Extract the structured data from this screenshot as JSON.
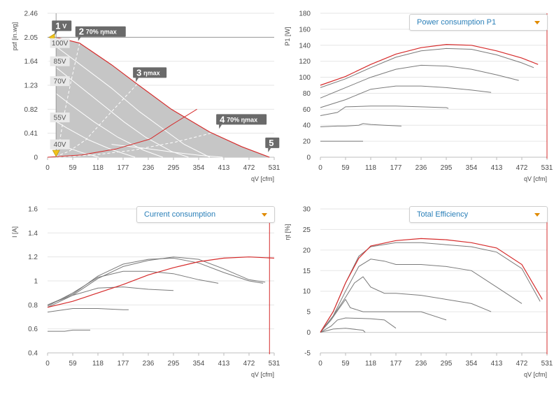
{
  "colors": {
    "accent": "#d62b2b",
    "curve": "#7a7a7a",
    "dropdown_text": "#2a7fb8",
    "caret": "#e08a00",
    "fill": "#c6c6c6"
  },
  "chart_data": [
    {
      "id": "pressure",
      "type": "line",
      "ylabel": "psf [in.wg]",
      "xlabel": "qV [cfm]",
      "x_ticks": [
        "0",
        "59",
        "118",
        "177",
        "236",
        "295",
        "354",
        "413",
        "472",
        "531"
      ],
      "y_ticks": [
        "0",
        "0.41",
        "0.82",
        "1.23",
        "1.64",
        "2.05",
        "2.46"
      ],
      "xlim": [
        0,
        531
      ],
      "ylim": [
        0,
        2.46
      ],
      "working_point": {
        "x": 20,
        "y": 2.05
      },
      "voltage_labels": [
        {
          "text": "100V",
          "x": 37,
          "y": 1.95
        },
        {
          "text": "85V",
          "x": 37,
          "y": 1.64
        },
        {
          "text": "70V",
          "x": 37,
          "y": 1.3
        },
        {
          "text": "55V",
          "x": 37,
          "y": 0.68
        },
        {
          "text": "40V",
          "x": 37,
          "y": 0.22
        }
      ],
      "markers": [
        {
          "num": "1",
          "text": "V",
          "x": 20,
          "y": 2.05
        },
        {
          "num": "2",
          "text": "70% ηmax",
          "x": 75,
          "y": 1.95
        },
        {
          "num": "3",
          "text": "ηmax",
          "x": 210,
          "y": 1.25
        },
        {
          "num": "4",
          "text": "70% ηmax",
          "x": 405,
          "y": 0.45
        },
        {
          "num": "5",
          "text": "",
          "x": 520,
          "y": 0.05
        }
      ],
      "envelope": [
        [
          20,
          2.05
        ],
        [
          75,
          1.95
        ],
        [
          150,
          1.58
        ],
        [
          210,
          1.25
        ],
        [
          290,
          0.82
        ],
        [
          380,
          0.43
        ],
        [
          455,
          0.18
        ],
        [
          520,
          0
        ]
      ],
      "max_curve": [
        [
          20,
          2.05
        ],
        [
          75,
          1.95
        ],
        [
          150,
          1.58
        ],
        [
          210,
          1.25
        ],
        [
          290,
          0.82
        ],
        [
          380,
          0.43
        ],
        [
          455,
          0.18
        ],
        [
          520,
          0
        ]
      ],
      "white_curves": [
        [
          [
            0,
            2.0
          ],
          [
            70,
            1.62
          ],
          [
            150,
            1.18
          ],
          [
            215,
            0.78
          ],
          [
            275,
            0.46
          ],
          [
            320,
            0.22
          ],
          [
            380,
            0
          ]
        ],
        [
          [
            0,
            1.65
          ],
          [
            60,
            1.3
          ],
          [
            120,
            0.95
          ],
          [
            180,
            0.6
          ],
          [
            230,
            0.34
          ],
          [
            290,
            0.1
          ],
          [
            330,
            0
          ]
        ],
        [
          [
            0,
            1.2
          ],
          [
            50,
            0.92
          ],
          [
            110,
            0.6
          ],
          [
            165,
            0.34
          ],
          [
            225,
            0.12
          ],
          [
            270,
            0
          ]
        ],
        [
          [
            0,
            0.7
          ],
          [
            45,
            0.5
          ],
          [
            95,
            0.3
          ],
          [
            150,
            0.13
          ],
          [
            205,
            0
          ]
        ],
        [
          [
            0,
            0.28
          ],
          [
            40,
            0.18
          ],
          [
            80,
            0.08
          ],
          [
            120,
            0
          ]
        ],
        [
          [
            150,
            0.22
          ],
          [
            230,
            0.15
          ],
          [
            300,
            0.08
          ],
          [
            360,
            0.03
          ],
          [
            410,
            0
          ]
        ]
      ],
      "dashed_curves": [
        [
          [
            75,
            1.95
          ],
          [
            55,
            1.3
          ],
          [
            38,
            0.7
          ],
          [
            28,
            0.25
          ],
          [
            20,
            0
          ]
        ],
        [
          [
            210,
            1.25
          ],
          [
            140,
            0.7
          ],
          [
            90,
            0.3
          ],
          [
            50,
            0.1
          ],
          [
            15,
            0
          ]
        ],
        [
          [
            405,
            0.45
          ],
          [
            300,
            0.26
          ],
          [
            200,
            0.12
          ],
          [
            110,
            0.04
          ],
          [
            20,
            0
          ]
        ]
      ],
      "system_curve": [
        [
          0,
          0
        ],
        [
          80,
          0.04
        ],
        [
          160,
          0.14
        ],
        [
          240,
          0.31
        ],
        [
          290,
          0.55
        ],
        [
          350,
          0.82
        ]
      ]
    },
    {
      "id": "power",
      "type": "line",
      "ylabel": "P1 [W]",
      "xlabel": "qV [cfm]",
      "dropdown": "Power consumption P1",
      "x_ticks": [
        "0",
        "59",
        "118",
        "177",
        "236",
        "295",
        "354",
        "413",
        "472",
        "531"
      ],
      "y_ticks": [
        "0",
        "20",
        "40",
        "60",
        "80",
        "100",
        "120",
        "140",
        "160",
        "180"
      ],
      "xlim": [
        0,
        531
      ],
      "ylim": [
        0,
        180
      ],
      "vline_x": 531,
      "red_series": [
        [
          0,
          90
        ],
        [
          59,
          101
        ],
        [
          118,
          116
        ],
        [
          177,
          129
        ],
        [
          236,
          137
        ],
        [
          295,
          141
        ],
        [
          354,
          140
        ],
        [
          413,
          133
        ],
        [
          472,
          124
        ],
        [
          510,
          116
        ]
      ],
      "gray_series": [
        [
          [
            0,
            87
          ],
          [
            59,
            98
          ],
          [
            118,
            112
          ],
          [
            177,
            125
          ],
          [
            236,
            133
          ],
          [
            295,
            136
          ],
          [
            354,
            135
          ],
          [
            413,
            128
          ],
          [
            472,
            118
          ],
          [
            500,
            112
          ]
        ],
        [
          [
            0,
            74
          ],
          [
            59,
            87
          ],
          [
            118,
            100
          ],
          [
            177,
            110
          ],
          [
            236,
            115
          ],
          [
            295,
            114
          ],
          [
            354,
            110
          ],
          [
            413,
            103
          ],
          [
            465,
            96
          ]
        ],
        [
          [
            0,
            62
          ],
          [
            59,
            72
          ],
          [
            118,
            85
          ],
          [
            177,
            89
          ],
          [
            236,
            89
          ],
          [
            295,
            87
          ],
          [
            354,
            84
          ],
          [
            400,
            81
          ]
        ],
        [
          [
            0,
            52
          ],
          [
            40,
            56
          ],
          [
            59,
            63
          ],
          [
            118,
            64
          ],
          [
            177,
            64
          ],
          [
            236,
            63
          ],
          [
            295,
            62
          ],
          [
            300,
            61
          ]
        ],
        [
          [
            0,
            38
          ],
          [
            40,
            39
          ],
          [
            59,
            39
          ],
          [
            90,
            40
          ],
          [
            100,
            42
          ],
          [
            118,
            41
          ],
          [
            150,
            40
          ],
          [
            190,
            39
          ]
        ],
        [
          [
            0,
            20
          ],
          [
            59,
            20
          ],
          [
            100,
            20
          ]
        ]
      ]
    },
    {
      "id": "current",
      "type": "line",
      "ylabel": "I [A]",
      "xlabel": "qV [cfm]",
      "dropdown": "Current consumption",
      "x_ticks": [
        "0",
        "59",
        "118",
        "177",
        "236",
        "295",
        "354",
        "413",
        "472",
        "531"
      ],
      "y_ticks": [
        "0.4",
        "0.6",
        "0.8",
        "1",
        "1.2",
        "1.4",
        "1.6"
      ],
      "xlim": [
        0,
        531
      ],
      "ylim": [
        0.4,
        1.6
      ],
      "vline_x": 520,
      "red_series": [
        [
          0,
          0.78
        ],
        [
          59,
          0.83
        ],
        [
          118,
          0.9
        ],
        [
          177,
          0.97
        ],
        [
          236,
          1.05
        ],
        [
          295,
          1.11
        ],
        [
          354,
          1.16
        ],
        [
          413,
          1.19
        ],
        [
          472,
          1.2
        ],
        [
          531,
          1.19
        ]
      ],
      "gray_series": [
        [
          [
            0,
            0.8
          ],
          [
            59,
            0.88
          ],
          [
            118,
            1.02
          ],
          [
            177,
            1.12
          ],
          [
            236,
            1.17
          ],
          [
            295,
            1.2
          ],
          [
            354,
            1.18
          ],
          [
            413,
            1.1
          ],
          [
            472,
            1.01
          ],
          [
            510,
            0.99
          ]
        ],
        [
          [
            0,
            0.8
          ],
          [
            59,
            0.89
          ],
          [
            118,
            1.04
          ],
          [
            177,
            1.14
          ],
          [
            236,
            1.18
          ],
          [
            295,
            1.19
          ],
          [
            354,
            1.15
          ],
          [
            413,
            1.07
          ],
          [
            472,
            1.0
          ],
          [
            505,
            0.98
          ]
        ],
        [
          [
            0,
            0.79
          ],
          [
            59,
            0.9
          ],
          [
            118,
            1.03
          ],
          [
            177,
            1.08
          ],
          [
            236,
            1.08
          ],
          [
            295,
            1.06
          ],
          [
            354,
            1.01
          ],
          [
            400,
            0.98
          ]
        ],
        [
          [
            0,
            0.78
          ],
          [
            59,
            0.88
          ],
          [
            118,
            0.94
          ],
          [
            177,
            0.95
          ],
          [
            236,
            0.93
          ],
          [
            295,
            0.92
          ]
        ],
        [
          [
            0,
            0.74
          ],
          [
            59,
            0.77
          ],
          [
            118,
            0.77
          ],
          [
            177,
            0.76
          ],
          [
            190,
            0.76
          ]
        ],
        [
          [
            0,
            0.58
          ],
          [
            40,
            0.58
          ],
          [
            59,
            0.59
          ],
          [
            100,
            0.59
          ]
        ]
      ]
    },
    {
      "id": "efficiency",
      "type": "line",
      "ylabel": "ηt [%]",
      "xlabel": "qV [cfm]",
      "dropdown": "Total Efficiency",
      "x_ticks": [
        "0",
        "59",
        "118",
        "177",
        "236",
        "295",
        "354",
        "413",
        "472",
        "531"
      ],
      "y_ticks": [
        "-5",
        "0",
        "5",
        "10",
        "15",
        "20",
        "25",
        "30"
      ],
      "xlim": [
        0,
        531
      ],
      "ylim": [
        -5,
        30
      ],
      "vline_x": 531,
      "red_series": [
        [
          0,
          0
        ],
        [
          30,
          5
        ],
        [
          59,
          12
        ],
        [
          90,
          18
        ],
        [
          118,
          21
        ],
        [
          177,
          22.3
        ],
        [
          236,
          22.8
        ],
        [
          295,
          22.5
        ],
        [
          354,
          21.8
        ],
        [
          413,
          20.5
        ],
        [
          472,
          16.5
        ],
        [
          520,
          8
        ]
      ],
      "gray_series": [
        [
          [
            0,
            0
          ],
          [
            30,
            5
          ],
          [
            59,
            12
          ],
          [
            90,
            18.5
          ],
          [
            118,
            20.8
          ],
          [
            177,
            21.8
          ],
          [
            236,
            21.8
          ],
          [
            295,
            21.3
          ],
          [
            354,
            20.8
          ],
          [
            413,
            19.5
          ],
          [
            472,
            15.5
          ],
          [
            515,
            7.5
          ]
        ],
        [
          [
            0,
            0
          ],
          [
            30,
            4
          ],
          [
            59,
            10
          ],
          [
            90,
            16
          ],
          [
            118,
            17.8
          ],
          [
            150,
            17.3
          ],
          [
            177,
            16.5
          ],
          [
            236,
            16.5
          ],
          [
            295,
            16
          ],
          [
            354,
            15
          ],
          [
            413,
            11
          ],
          [
            472,
            7
          ]
        ],
        [
          [
            0,
            0
          ],
          [
            30,
            4
          ],
          [
            59,
            8.5
          ],
          [
            80,
            12
          ],
          [
            100,
            13.5
          ],
          [
            118,
            11
          ],
          [
            150,
            9.5
          ],
          [
            177,
            9.5
          ],
          [
            236,
            9
          ],
          [
            295,
            8
          ],
          [
            354,
            7
          ],
          [
            400,
            5
          ]
        ],
        [
          [
            0,
            0
          ],
          [
            25,
            3
          ],
          [
            45,
            6
          ],
          [
            59,
            8
          ],
          [
            70,
            6
          ],
          [
            100,
            5
          ],
          [
            150,
            5
          ],
          [
            236,
            5
          ],
          [
            295,
            3
          ]
        ],
        [
          [
            0,
            0
          ],
          [
            25,
            1.5
          ],
          [
            40,
            3
          ],
          [
            59,
            3.5
          ],
          [
            118,
            3.3
          ],
          [
            150,
            3
          ],
          [
            177,
            1
          ]
        ],
        [
          [
            0,
            0
          ],
          [
            30,
            0.8
          ],
          [
            59,
            1
          ],
          [
            100,
            0.5
          ],
          [
            105,
            0
          ]
        ]
      ]
    }
  ]
}
